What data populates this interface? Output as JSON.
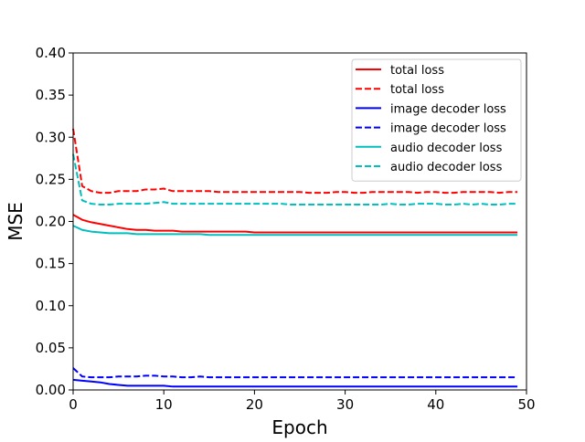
{
  "chart_data": {
    "type": "line",
    "title": "",
    "xlabel": "Epoch",
    "ylabel": "MSE",
    "xlim": [
      0,
      50
    ],
    "ylim": [
      0.0,
      0.4
    ],
    "grid": false,
    "legend_position": "top-right",
    "x_ticks": [
      "0",
      "10",
      "20",
      "30",
      "40",
      "50"
    ],
    "y_ticks": [
      "0.00",
      "0.05",
      "0.10",
      "0.15",
      "0.20",
      "0.25",
      "0.30",
      "0.35",
      "0.40"
    ],
    "x": [
      0,
      1,
      2,
      3,
      4,
      5,
      6,
      7,
      8,
      9,
      10,
      11,
      12,
      13,
      14,
      15,
      16,
      17,
      18,
      19,
      20,
      21,
      22,
      23,
      24,
      25,
      26,
      27,
      28,
      29,
      30,
      31,
      32,
      33,
      34,
      35,
      36,
      37,
      38,
      39,
      40,
      41,
      42,
      43,
      44,
      45,
      46,
      47,
      48,
      49
    ],
    "series": [
      {
        "name": "total loss",
        "color": "#ff0000",
        "style": "solid",
        "values": [
          0.208,
          0.202,
          0.199,
          0.197,
          0.195,
          0.193,
          0.191,
          0.19,
          0.19,
          0.189,
          0.189,
          0.189,
          0.188,
          0.188,
          0.188,
          0.188,
          0.188,
          0.188,
          0.188,
          0.188,
          0.187,
          0.187,
          0.187,
          0.187,
          0.187,
          0.187,
          0.187,
          0.187,
          0.187,
          0.187,
          0.187,
          0.187,
          0.187,
          0.187,
          0.187,
          0.187,
          0.187,
          0.187,
          0.187,
          0.187,
          0.187,
          0.187,
          0.187,
          0.187,
          0.187,
          0.187,
          0.187,
          0.187,
          0.187,
          0.187
        ]
      },
      {
        "name": "total loss",
        "color": "#ff0000",
        "style": "dashed",
        "values": [
          0.31,
          0.242,
          0.236,
          0.234,
          0.234,
          0.236,
          0.236,
          0.236,
          0.238,
          0.238,
          0.239,
          0.236,
          0.236,
          0.236,
          0.236,
          0.236,
          0.235,
          0.235,
          0.235,
          0.235,
          0.235,
          0.235,
          0.235,
          0.235,
          0.235,
          0.235,
          0.234,
          0.234,
          0.234,
          0.235,
          0.235,
          0.234,
          0.234,
          0.235,
          0.235,
          0.235,
          0.235,
          0.235,
          0.234,
          0.235,
          0.235,
          0.234,
          0.234,
          0.235,
          0.235,
          0.235,
          0.235,
          0.234,
          0.235,
          0.235
        ]
      },
      {
        "name": "image decoder loss",
        "color": "#0000ff",
        "style": "solid",
        "values": [
          0.012,
          0.011,
          0.01,
          0.009,
          0.007,
          0.006,
          0.005,
          0.005,
          0.005,
          0.005,
          0.005,
          0.004,
          0.004,
          0.004,
          0.004,
          0.004,
          0.004,
          0.004,
          0.004,
          0.004,
          0.004,
          0.004,
          0.004,
          0.004,
          0.004,
          0.004,
          0.004,
          0.004,
          0.004,
          0.004,
          0.004,
          0.004,
          0.004,
          0.004,
          0.004,
          0.004,
          0.004,
          0.004,
          0.004,
          0.004,
          0.004,
          0.004,
          0.004,
          0.004,
          0.004,
          0.004,
          0.004,
          0.004,
          0.004,
          0.004
        ]
      },
      {
        "name": "image decoder loss",
        "color": "#0000ff",
        "style": "dashed",
        "values": [
          0.026,
          0.016,
          0.015,
          0.015,
          0.015,
          0.016,
          0.016,
          0.016,
          0.017,
          0.017,
          0.016,
          0.016,
          0.015,
          0.015,
          0.016,
          0.015,
          0.015,
          0.015,
          0.015,
          0.015,
          0.015,
          0.015,
          0.015,
          0.015,
          0.015,
          0.015,
          0.015,
          0.015,
          0.015,
          0.015,
          0.015,
          0.015,
          0.015,
          0.015,
          0.015,
          0.015,
          0.015,
          0.015,
          0.015,
          0.015,
          0.015,
          0.015,
          0.015,
          0.015,
          0.015,
          0.015,
          0.015,
          0.015,
          0.015,
          0.015
        ]
      },
      {
        "name": "audio decoder loss",
        "color": "#00bfbf",
        "style": "solid",
        "values": [
          0.195,
          0.19,
          0.188,
          0.187,
          0.186,
          0.186,
          0.186,
          0.185,
          0.185,
          0.185,
          0.185,
          0.185,
          0.185,
          0.185,
          0.185,
          0.184,
          0.184,
          0.184,
          0.184,
          0.184,
          0.184,
          0.184,
          0.184,
          0.184,
          0.184,
          0.184,
          0.184,
          0.184,
          0.184,
          0.184,
          0.184,
          0.184,
          0.184,
          0.184,
          0.184,
          0.184,
          0.184,
          0.184,
          0.184,
          0.184,
          0.184,
          0.184,
          0.184,
          0.184,
          0.184,
          0.184,
          0.184,
          0.184,
          0.184,
          0.184
        ]
      },
      {
        "name": "audio decoder loss",
        "color": "#00bfbf",
        "style": "dashed",
        "values": [
          0.28,
          0.225,
          0.221,
          0.22,
          0.22,
          0.221,
          0.221,
          0.221,
          0.221,
          0.222,
          0.223,
          0.221,
          0.221,
          0.221,
          0.221,
          0.221,
          0.221,
          0.221,
          0.221,
          0.221,
          0.221,
          0.221,
          0.221,
          0.221,
          0.22,
          0.22,
          0.22,
          0.22,
          0.22,
          0.22,
          0.22,
          0.22,
          0.22,
          0.22,
          0.22,
          0.221,
          0.22,
          0.22,
          0.221,
          0.221,
          0.221,
          0.22,
          0.22,
          0.221,
          0.22,
          0.221,
          0.22,
          0.22,
          0.221,
          0.221
        ]
      }
    ]
  }
}
